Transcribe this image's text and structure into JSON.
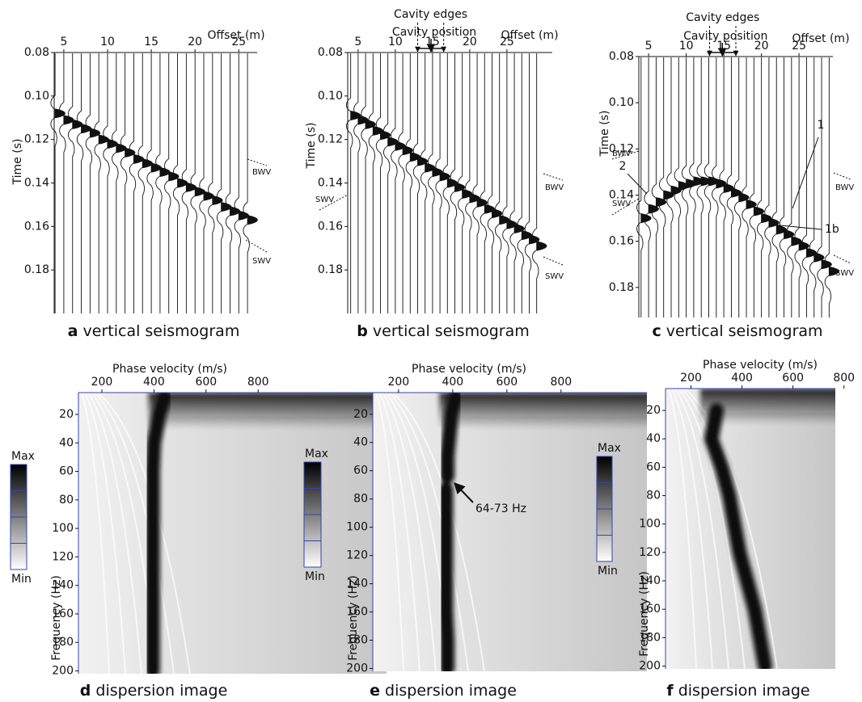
{
  "chart_data": [
    {
      "type": "seismogram",
      "axis_title_x": "Offset (m)",
      "axis_title_y": "Time (s)",
      "xlim": [
        3.9,
        27.1
      ],
      "ylim": [
        0.08,
        0.2
      ],
      "xticks": [
        5,
        10,
        15,
        20,
        25
      ],
      "yticks": [
        0.08,
        {
          "value": 0.1,
          "label": "0.10"
        },
        0.12,
        0.14,
        0.16,
        0.18
      ],
      "x": [
        4,
        5,
        6,
        7,
        8,
        9,
        10,
        11,
        12,
        13,
        14,
        15,
        16,
        17,
        18,
        19,
        20,
        21,
        22,
        23,
        24,
        25,
        26
      ],
      "values": [
        0.108,
        0.111,
        0.113,
        0.115,
        0.117,
        0.12,
        0.122,
        0.124,
        0.126,
        0.129,
        0.131,
        0.133,
        0.135,
        0.137,
        0.14,
        0.142,
        0.144,
        0.146,
        0.148,
        0.151,
        0.153,
        0.155,
        0.157
      ],
      "annotations": [
        {
          "text": "BWV"
        },
        {
          "text": "SWV"
        }
      ],
      "panel_label": "a",
      "caption": "vertical seismogram"
    },
    {
      "type": "seismogram",
      "axis_title_x": "Offset (m)",
      "axis_title_y": "Time (s)",
      "xlim": [
        3.6,
        31.1
      ],
      "ylim": [
        0.08,
        0.2
      ],
      "xticks": [
        5,
        10,
        15,
        20,
        25
      ],
      "yticks": [
        0.08,
        {
          "value": 0.1,
          "label": "0.10"
        },
        0.12,
        0.14,
        0.16,
        0.18
      ],
      "x": [
        4,
        5,
        6,
        7,
        8,
        9,
        10,
        11,
        12,
        13,
        14,
        15,
        16,
        17,
        18,
        19,
        20,
        21,
        22,
        23,
        24,
        25,
        26,
        27,
        28,
        29
      ],
      "values": [
        0.109,
        0.111,
        0.113,
        0.116,
        0.118,
        0.121,
        0.123,
        0.125,
        0.128,
        0.13,
        0.133,
        0.135,
        0.137,
        0.14,
        0.142,
        0.145,
        0.147,
        0.149,
        0.152,
        0.154,
        0.157,
        0.159,
        0.161,
        0.164,
        0.166,
        0.169
      ],
      "cavity": {
        "edges_label": "Cavity edges",
        "position_label": "Cavity position",
        "edges": [
          13,
          16.5
        ],
        "position": 14.8
      },
      "annotations": [
        {
          "text": "SWV"
        },
        {
          "text": "BWV"
        },
        {
          "text": "SWV"
        }
      ],
      "panel_label": "b",
      "caption": "vertical seismogram"
    },
    {
      "type": "seismogram",
      "axis_title_x": "Offset (m)",
      "axis_title_y": "Time (s)",
      "xlim": [
        3.7,
        29.5
      ],
      "ylim": [
        0.08,
        0.193
      ],
      "xticks": [
        5,
        10,
        15,
        20,
        25
      ],
      "yticks": [
        0.08,
        {
          "value": 0.1,
          "label": "0.10"
        },
        0.12,
        0.14,
        0.16,
        0.18
      ],
      "x": [
        4,
        5,
        6,
        7,
        8,
        9,
        10,
        11,
        12,
        13,
        14,
        15,
        16,
        17,
        18,
        19,
        20,
        21,
        22,
        23,
        24,
        25,
        26,
        27,
        28,
        29
      ],
      "values": [
        0.15,
        0.146,
        0.143,
        0.14,
        0.138,
        0.136,
        0.135,
        0.134,
        0.134,
        0.134,
        0.135,
        0.137,
        0.139,
        0.141,
        0.144,
        0.147,
        0.15,
        0.152,
        0.155,
        0.157,
        0.16,
        0.162,
        0.165,
        0.167,
        0.17,
        0.173
      ],
      "cavity": {
        "edges_label": "Cavity edges",
        "position_label": "Cavity position",
        "edges": [
          13.1,
          16.6
        ],
        "position": 14.8
      },
      "annotations": [
        {
          "text": "BWV"
        },
        {
          "text": "SWV"
        },
        {
          "text": "2"
        },
        {
          "text": "1"
        },
        {
          "text": "1b"
        },
        {
          "text": "BWV"
        },
        {
          "text": "SWV"
        }
      ],
      "panel_label": "c",
      "caption": "vertical seismogram"
    },
    {
      "type": "dispersion_image",
      "axis_title_x": "Phase velocity (m/s)",
      "axis_title_y": "Frequency (Hz)",
      "xlim": [
        110,
        1293
      ],
      "ylim": [
        4.7,
        202
      ],
      "xticks": [
        200,
        400,
        600,
        800
      ],
      "yticks": [
        20,
        40,
        60,
        80,
        100,
        120,
        140,
        160,
        180,
        200
      ],
      "frequency": [
        8,
        20,
        30,
        40,
        60,
        80,
        100,
        120,
        140,
        160,
        180,
        200
      ],
      "velocity": [
        440,
        420,
        410,
        400,
        395,
        395,
        395,
        395,
        395,
        395,
        395,
        395
      ],
      "colorbar": {
        "max_label": "Max",
        "min_label": "Min"
      },
      "panel_label": "d",
      "caption": "dispersion image"
    },
    {
      "type": "dispersion_image",
      "axis_title_x": "Phase velocity (m/s)",
      "axis_title_y": "Frequency (Hz)",
      "xlim": [
        105,
        1117
      ],
      "ylim": [
        4.7,
        202
      ],
      "xticks": [
        200,
        400,
        600,
        800
      ],
      "yticks": [
        20,
        40,
        60,
        80,
        100,
        120,
        140,
        160,
        180,
        200
      ],
      "frequency": [
        8,
        20,
        30,
        40,
        50,
        60,
        64,
        68,
        73,
        80,
        100,
        120,
        140,
        160,
        180,
        200
      ],
      "velocity": [
        410,
        395,
        390,
        385,
        380,
        380,
        380,
        null,
        375,
        375,
        375,
        375,
        375,
        375,
        380,
        380
      ],
      "colorbar": {
        "max_label": "Max",
        "min_label": "Min"
      },
      "annotations": [
        {
          "text": "64-73 Hz"
        }
      ],
      "panel_label": "e",
      "caption": "dispersion image"
    },
    {
      "type": "dispersion_image",
      "axis_title_x": "Phase velocity (m/s)",
      "axis_title_y": "Frequency (Hz)",
      "xlim": [
        100,
        766
      ],
      "ylim": [
        4.6,
        202
      ],
      "xticks": [
        200,
        400,
        600,
        800
      ],
      "yticks": [
        20,
        40,
        60,
        80,
        100,
        120,
        140,
        160,
        180,
        200
      ],
      "frequency": [
        20,
        40,
        60,
        80,
        100,
        120,
        140,
        160,
        180,
        200
      ],
      "velocity": [
        300,
        280,
        320,
        350,
        370,
        390,
        420,
        450,
        470,
        490
      ],
      "colorbar": {
        "max_label": "Max",
        "min_label": "Min"
      },
      "panel_label": "f",
      "caption": "dispersion image"
    }
  ]
}
